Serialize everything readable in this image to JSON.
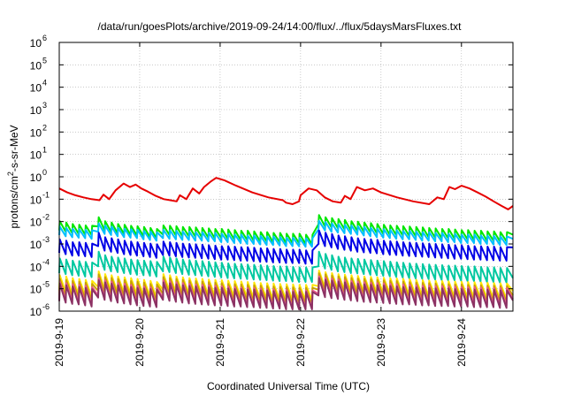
{
  "chart_data": {
    "type": "line",
    "title": "/data/run/goesPlots/archive/2019-09-24/14:00/flux/../flux/5daysMarsFluxes.txt",
    "xlabel": "Coordinated Universal Time (UTC)",
    "ylabel_parts": [
      "protons/cm",
      "2",
      "-s-sr-MeV"
    ],
    "yscale": "log",
    "ylim_exp": [
      -6,
      6
    ],
    "ytick_exponents": [
      -6,
      -5,
      -4,
      -3,
      -2,
      -1,
      0,
      1,
      2,
      3,
      4,
      5,
      6
    ],
    "ytick_base": "10",
    "xlim": [
      0,
      5.64
    ],
    "x_unit_note": "days from 2019-9-19 00:00 UTC",
    "x_ticks": [
      {
        "pos": 0,
        "label": "2019-9-19"
      },
      {
        "pos": 1,
        "label": "2019-9-20"
      },
      {
        "pos": 2,
        "label": "2019-9-21"
      },
      {
        "pos": 3,
        "label": "2019-9-22"
      },
      {
        "pos": 4,
        "label": "2019-9-23"
      },
      {
        "pos": 5,
        "label": "2019-9-24"
      }
    ],
    "grid": true,
    "series": [
      {
        "color": "#e60000",
        "x": [
          0.0,
          0.1,
          0.2,
          0.3,
          0.4,
          0.5,
          0.55,
          0.62,
          0.7,
          0.8,
          0.88,
          0.95,
          1.02,
          1.1,
          1.2,
          1.3,
          1.38,
          1.46,
          1.5,
          1.58,
          1.66,
          1.74,
          1.8,
          1.88,
          1.95,
          2.05,
          2.2,
          2.4,
          2.6,
          2.78,
          2.82,
          2.9,
          2.98,
          3.0,
          3.1,
          3.2,
          3.3,
          3.4,
          3.5,
          3.55,
          3.62,
          3.7,
          3.8,
          3.9,
          4.0,
          4.2,
          4.4,
          4.6,
          4.7,
          4.78,
          4.85,
          4.92,
          5.0,
          5.1,
          5.2,
          5.3,
          5.4,
          5.5,
          5.58,
          5.64
        ],
        "y": [
          0.3,
          0.2,
          0.15,
          0.12,
          0.1,
          0.09,
          0.16,
          0.1,
          0.25,
          0.5,
          0.35,
          0.45,
          0.3,
          0.22,
          0.14,
          0.1,
          0.09,
          0.08,
          0.15,
          0.1,
          0.3,
          0.18,
          0.35,
          0.6,
          0.9,
          0.7,
          0.4,
          0.2,
          0.12,
          0.09,
          0.07,
          0.06,
          0.08,
          0.15,
          0.3,
          0.25,
          0.12,
          0.08,
          0.07,
          0.14,
          0.1,
          0.35,
          0.25,
          0.3,
          0.2,
          0.12,
          0.08,
          0.06,
          0.12,
          0.1,
          0.35,
          0.28,
          0.4,
          0.3,
          0.2,
          0.13,
          0.08,
          0.05,
          0.035,
          0.05
        ]
      },
      {
        "color": "#00e600",
        "base": [
          0.004,
          0.0035,
          0.003,
          0.0028,
          0.0026,
          0.0025,
          0.006,
          0.004,
          0.0035,
          0.003,
          0.0028,
          0.0025,
          0.0024,
          0.0022,
          0.002,
          0.0018,
          0.0026,
          0.0025,
          0.0024,
          0.0022,
          0.0022,
          0.0021,
          0.002,
          0.0019,
          0.0018,
          0.0018,
          0.0017,
          0.0016,
          0.0015,
          0.0015,
          0.0014,
          0.0013,
          0.0013,
          0.0012,
          0.0012,
          0.0011,
          0.0011,
          0.0011,
          0.001,
          0.001,
          0.0075,
          0.006,
          0.0055,
          0.005,
          0.0045,
          0.004,
          0.0038,
          0.0035,
          0.0033,
          0.003,
          0.0028,
          0.0026,
          0.0025,
          0.0024,
          0.0023,
          0.0022,
          0.0021,
          0.002,
          0.0019,
          0.0018,
          0.0018,
          0.0017,
          0.0016,
          0.0016,
          0.0015,
          0.0015,
          0.0014,
          0.0014,
          0.0013,
          0.0013,
          0.0026
        ],
        "peak_factor": 2.6
      },
      {
        "color": "#00bfff",
        "base": [
          0.0025,
          0.0022,
          0.002,
          0.0019,
          0.0018,
          0.0017,
          0.0035,
          0.0028,
          0.0025,
          0.0022,
          0.002,
          0.0019,
          0.0018,
          0.0016,
          0.0015,
          0.0014,
          0.0018,
          0.0017,
          0.0016,
          0.0015,
          0.0015,
          0.0014,
          0.0014,
          0.0013,
          0.0013,
          0.0012,
          0.0012,
          0.0011,
          0.0011,
          0.001,
          0.001,
          0.00095,
          0.0009,
          0.0009,
          0.00085,
          0.0008,
          0.0008,
          0.00078,
          0.00075,
          0.00075,
          0.0045,
          0.004,
          0.0035,
          0.0032,
          0.003,
          0.0028,
          0.0026,
          0.0024,
          0.0022,
          0.002,
          0.0019,
          0.0018,
          0.0017,
          0.0016,
          0.0016,
          0.0015,
          0.0014,
          0.0014,
          0.0013,
          0.0013,
          0.0012,
          0.0012,
          0.0011,
          0.0011,
          0.0011,
          0.001,
          0.001,
          0.00095,
          0.0009,
          0.0009,
          0.0017
        ],
        "peak_factor": 2.4
      },
      {
        "color": "#0000e6",
        "base": [
          0.0004,
          0.00035,
          0.0003,
          0.0003,
          0.00028,
          0.00026,
          0.0008,
          0.0005,
          0.00045,
          0.0004,
          0.00035,
          0.00032,
          0.0003,
          0.00028,
          0.00026,
          0.00024,
          0.00032,
          0.0003,
          0.00028,
          0.00026,
          0.00025,
          0.00024,
          0.00023,
          0.00022,
          0.00021,
          0.0002,
          0.0002,
          0.00019,
          0.00018,
          0.00018,
          0.00017,
          0.00016,
          0.00016,
          0.00015,
          0.00015,
          0.00014,
          0.00014,
          0.00014,
          0.00013,
          0.00013,
          0.001,
          0.0008,
          0.0007,
          0.0006,
          0.00055,
          0.0005,
          0.00045,
          0.00042,
          0.0004,
          0.00038,
          0.00035,
          0.00033,
          0.00032,
          0.0003,
          0.00029,
          0.00028,
          0.00027,
          0.00026,
          0.00025,
          0.00024,
          0.00023,
          0.00022,
          0.00022,
          0.00021,
          0.0002,
          0.0002,
          0.00019,
          0.00019,
          0.00018,
          0.00018,
          0.0007
        ],
        "peak_factor": 4.0
      },
      {
        "color": "#00c8a0",
        "base": [
          5e-05,
          4.5e-05,
          4e-05,
          3.8e-05,
          3.5e-05,
          3.3e-05,
          0.0001,
          7e-05,
          6e-05,
          5.5e-05,
          5e-05,
          4.5e-05,
          4.2e-05,
          4e-05,
          3.8e-05,
          3.5e-05,
          6e-05,
          5.5e-05,
          5e-05,
          4.5e-05,
          4.2e-05,
          4e-05,
          3.8e-05,
          3.6e-05,
          3.4e-05,
          3.2e-05,
          3e-05,
          2.9e-05,
          2.8e-05,
          2.7e-05,
          2.6e-05,
          2.5e-05,
          2.4e-05,
          2.3e-05,
          2.2e-05,
          2.2e-05,
          2.1e-05,
          2e-05,
          2e-05,
          2e-05,
          0.0001,
          8e-05,
          7e-05,
          6e-05,
          5.5e-05,
          5e-05,
          4.8e-05,
          4.5e-05,
          4.2e-05,
          4e-05,
          3.8e-05,
          3.6e-05,
          3.4e-05,
          3.2e-05,
          3e-05,
          2.9e-05,
          2.8e-05,
          2.7e-05,
          2.6e-05,
          2.5e-05,
          2.4e-05,
          2.4e-05,
          2.3e-05,
          2.2e-05,
          2.2e-05,
          2.1e-05,
          2e-05,
          2e-05,
          1.9e-05,
          1.9e-05,
          3e-05
        ],
        "peak_factor": 4.5
      },
      {
        "color": "#ffe600",
        "base": [
          8e-06,
          7e-06,
          6e-06,
          5.5e-06,
          5e-06,
          4.5e-06,
          1.2e-05,
          9e-06,
          8e-06,
          7e-06,
          6.5e-06,
          6e-06,
          5.5e-06,
          5e-06,
          4.5e-06,
          4e-06,
          9e-06,
          8e-06,
          7e-06,
          6.5e-06,
          6e-06,
          5.8e-06,
          5.5e-06,
          5.2e-06,
          5e-06,
          4.8e-06,
          4.6e-06,
          4.4e-06,
          4.2e-06,
          4e-06,
          3.8e-06,
          3.6e-06,
          3.5e-06,
          3.4e-06,
          3.3e-06,
          3.2e-06,
          3.1e-06,
          3e-06,
          3e-06,
          3e-06,
          1.3e-05,
          1.1e-05,
          1e-05,
          9e-06,
          8.5e-06,
          8e-06,
          7.5e-06,
          7e-06,
          6.8e-06,
          6.5e-06,
          6.2e-06,
          6e-06,
          5.8e-06,
          5.5e-06,
          5.3e-06,
          5e-06,
          4.8e-06,
          4.6e-06,
          4.5e-06,
          4.4e-06,
          4.3e-06,
          4.2e-06,
          4.1e-06,
          4e-06,
          3.9e-06,
          3.8e-06,
          3.7e-06,
          3.6e-06,
          3.5e-06,
          3.4e-06,
          8e-06
        ],
        "peak_factor": 5.0
      },
      {
        "color": "#c8a000",
        "base": [
          5e-06,
          4.5e-06,
          4e-06,
          3.7e-06,
          3.4e-06,
          3e-06,
          8e-06,
          6e-06,
          5.5e-06,
          5e-06,
          4.5e-06,
          4e-06,
          3.7e-06,
          3.4e-06,
          3e-06,
          2.8e-06,
          6e-06,
          5.5e-06,
          5e-06,
          4.5e-06,
          4.2e-06,
          4e-06,
          3.8e-06,
          3.6e-06,
          3.4e-06,
          3.2e-06,
          3e-06,
          2.9e-06,
          2.8e-06,
          2.7e-06,
          2.6e-06,
          2.5e-06,
          2.4e-06,
          2.3e-06,
          2.2e-06,
          2.2e-06,
          2.1e-06,
          2e-06,
          2e-06,
          2e-06,
          9e-06,
          8e-06,
          7e-06,
          6.5e-06,
          6e-06,
          5.5e-06,
          5.2e-06,
          5e-06,
          4.8e-06,
          4.5e-06,
          4.3e-06,
          4.1e-06,
          4e-06,
          3.8e-06,
          3.6e-06,
          3.4e-06,
          3.3e-06,
          3.2e-06,
          3.1e-06,
          3e-06,
          2.9e-06,
          2.8e-06,
          2.8e-06,
          2.7e-06,
          2.6e-06,
          2.6e-06,
          2.5e-06,
          2.5e-06,
          2.4e-06,
          2.4e-06,
          5e-06
        ],
        "peak_factor": 5.5
      },
      {
        "color": "#e65a8c",
        "base": [
          3.5e-06,
          3e-06,
          2.7e-06,
          2.5e-06,
          2.3e-06,
          2e-06,
          5e-06,
          4e-06,
          3.5e-06,
          3e-06,
          2.8e-06,
          2.5e-06,
          2.3e-06,
          2.1e-06,
          2e-06,
          1.8e-06,
          4e-06,
          3.6e-06,
          3.3e-06,
          3e-06,
          2.8e-06,
          2.6e-06,
          2.5e-06,
          2.4e-06,
          2.3e-06,
          2.2e-06,
          2.1e-06,
          2e-06,
          1.9e-06,
          1.8e-06,
          1.8e-06,
          1.7e-06,
          1.6e-06,
          1.6e-06,
          1.5e-06,
          1.5e-06,
          1.4e-06,
          1.4e-06,
          1.4e-06,
          1.4e-06,
          6e-06,
          5.2e-06,
          4.8e-06,
          4.4e-06,
          4e-06,
          3.7e-06,
          3.5e-06,
          3.3e-06,
          3.1e-06,
          3e-06,
          2.9e-06,
          2.8e-06,
          2.7e-06,
          2.6e-06,
          2.5e-06,
          2.4e-06,
          2.3e-06,
          2.3e-06,
          2.2e-06,
          2.2e-06,
          2.1e-06,
          2.1e-06,
          2e-06,
          2e-06,
          2e-06,
          1.9e-06,
          1.9e-06,
          1.8e-06,
          1.8e-06,
          1.8e-06,
          3.5e-06
        ],
        "peak_factor": 6.0
      },
      {
        "color": "#8c3264",
        "base": [
          2.8e-06,
          2.4e-06,
          2.1e-06,
          2e-06,
          1.8e-06,
          1.6e-06,
          4e-06,
          3.2e-06,
          2.8e-06,
          2.4e-06,
          2.2e-06,
          2e-06,
          1.8e-06,
          1.7e-06,
          1.6e-06,
          1.5e-06,
          3.2e-06,
          2.9e-06,
          2.6e-06,
          2.4e-06,
          2.2e-06,
          2.1e-06,
          2e-06,
          1.9e-06,
          1.8e-06,
          1.8e-06,
          1.7e-06,
          1.6e-06,
          1.6e-06,
          1.5e-06,
          1.5e-06,
          1.4e-06,
          1.4e-06,
          1.3e-06,
          1.3e-06,
          1.2e-06,
          1.2e-06,
          1.2e-06,
          1.2e-06,
          1.2e-06,
          5e-06,
          4.2e-06,
          3.8e-06,
          3.5e-06,
          3.2e-06,
          3e-06,
          2.8e-06,
          2.6e-06,
          2.5e-06,
          2.4e-06,
          2.3e-06,
          2.2e-06,
          2.1e-06,
          2e-06,
          2e-06,
          1.9e-06,
          1.8e-06,
          1.8e-06,
          1.7e-06,
          1.7e-06,
          1.7e-06,
          1.6e-06,
          1.6e-06,
          1.6e-06,
          1.5e-06,
          1.5e-06,
          1.5e-06,
          1.5e-06,
          1.4e-06,
          1.4e-06,
          3e-06
        ],
        "peak_factor": 6.0
      }
    ]
  }
}
